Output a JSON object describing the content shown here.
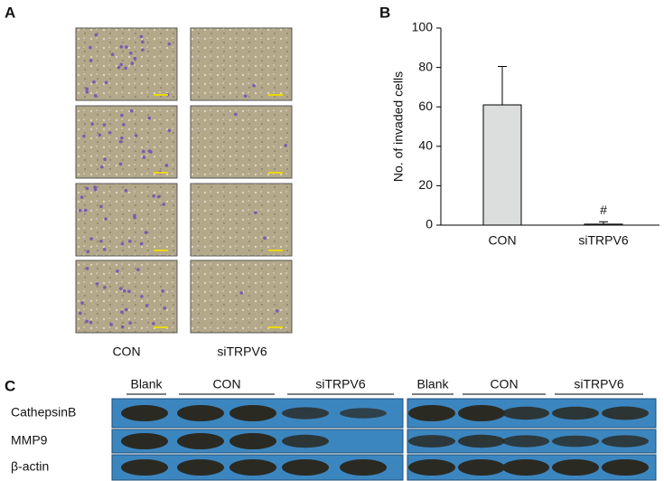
{
  "panel_a": {
    "label": "A",
    "columns": [
      "CON",
      "siTRPV6"
    ]
  },
  "panel_b": {
    "label": "B"
  },
  "chart_data": {
    "type": "bar",
    "ylabel": "No. of invaded cells",
    "categories": [
      "CON",
      "siTRPV6"
    ],
    "values": [
      61,
      0.5
    ],
    "errors": [
      19.5,
      1.2
    ],
    "annotations": [
      null,
      "#"
    ],
    "color": "#dcdedd",
    "ylim": [
      0,
      100
    ],
    "yticks": [
      0,
      20,
      40,
      60,
      80,
      100
    ]
  },
  "panel_c": {
    "label": "C",
    "blots": [
      {
        "groups": [
          "Blank",
          "CON",
          "siTRPV6"
        ]
      },
      {
        "groups": [
          "Blank",
          "CON",
          "siTRPV6"
        ]
      }
    ],
    "rows": [
      "CathepsinB",
      "MMP9",
      "β-actin"
    ]
  }
}
